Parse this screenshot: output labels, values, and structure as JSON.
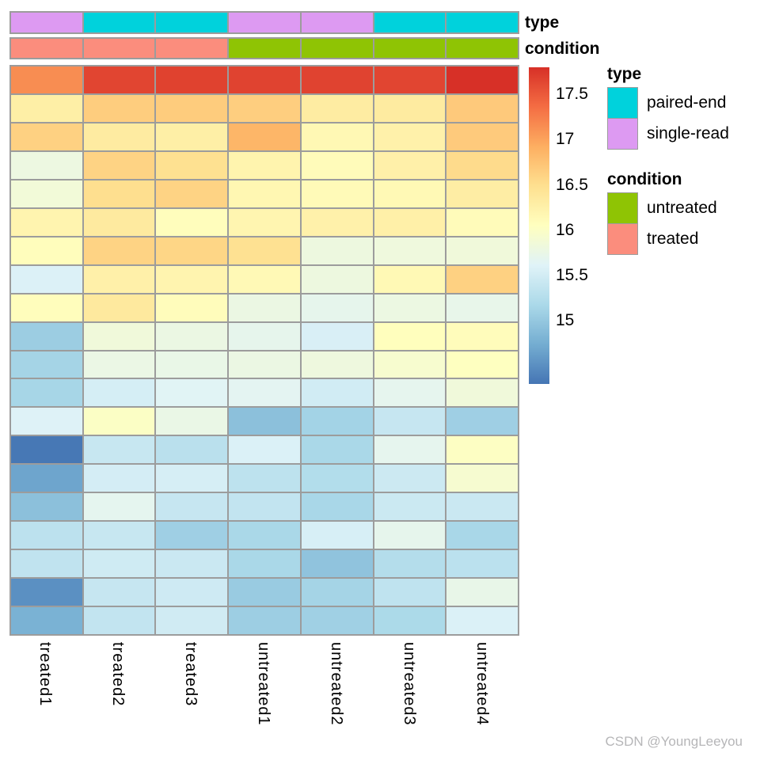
{
  "watermark": {
    "text": "CSDN @YoungLeeyou",
    "color": "#b6b6b8"
  },
  "annotation_bars": {
    "type_label": "type",
    "condition_label": "condition",
    "type_values": [
      "single-read",
      "paired-end",
      "paired-end",
      "single-read",
      "single-read",
      "paired-end",
      "paired-end"
    ],
    "condition_values": [
      "treated",
      "treated",
      "treated",
      "untreated",
      "untreated",
      "untreated",
      "untreated"
    ],
    "colors": {
      "paired-end": "#00D2DC",
      "single-read": "#DD9AF2",
      "untreated": "#8FC404",
      "treated": "#FB8D7D"
    }
  },
  "legends": [
    {
      "title": "type",
      "items": [
        {
          "label": "paired-end",
          "color": "#00D2DC"
        },
        {
          "label": "single-read",
          "color": "#DD9AF2"
        }
      ]
    },
    {
      "title": "condition",
      "items": [
        {
          "label": "untreated",
          "color": "#8FC404"
        },
        {
          "label": "treated",
          "color": "#FB8D7D"
        }
      ]
    }
  ],
  "chart_data": {
    "type": "heatmap",
    "title": "",
    "columns": [
      "treated1",
      "treated2",
      "treated3",
      "untreated1",
      "untreated2",
      "untreated3",
      "untreated4"
    ],
    "rows_shown": false,
    "grid_line_color": "#9C9C9C",
    "values": [
      [
        17.15,
        17.65,
        17.67,
        17.66,
        17.66,
        17.65,
        17.8
      ],
      [
        16.28,
        16.66,
        16.67,
        16.65,
        16.32,
        16.34,
        16.69
      ],
      [
        16.62,
        16.33,
        16.28,
        16.86,
        16.15,
        16.25,
        16.68
      ],
      [
        15.79,
        16.6,
        16.48,
        16.21,
        16.1,
        16.26,
        16.53
      ],
      [
        15.86,
        16.5,
        16.6,
        16.17,
        16.12,
        16.14,
        16.3
      ],
      [
        16.2,
        16.35,
        16.08,
        16.19,
        16.25,
        16.27,
        16.1
      ],
      [
        16.08,
        16.6,
        16.58,
        16.47,
        15.8,
        15.82,
        15.84
      ],
      [
        15.58,
        16.26,
        16.2,
        16.13,
        15.8,
        16.14,
        16.62
      ],
      [
        16.08,
        16.36,
        16.09,
        15.77,
        15.7,
        15.78,
        15.72
      ],
      [
        15.06,
        15.84,
        15.77,
        15.7,
        15.55,
        16.07,
        16.09
      ],
      [
        15.13,
        15.76,
        15.74,
        15.77,
        15.81,
        15.93,
        16.04
      ],
      [
        15.15,
        15.52,
        15.63,
        15.66,
        15.49,
        15.69,
        15.84
      ],
      [
        15.59,
        16.0,
        15.75,
        14.93,
        15.12,
        15.4,
        15.08
      ],
      [
        14.32,
        15.41,
        15.3,
        15.57,
        15.17,
        15.69,
        16.02
      ],
      [
        14.68,
        15.51,
        15.53,
        15.33,
        15.24,
        15.45,
        15.92
      ],
      [
        14.93,
        15.68,
        15.4,
        15.37,
        15.16,
        15.44,
        15.43
      ],
      [
        15.32,
        15.41,
        15.08,
        15.17,
        15.54,
        15.7,
        15.16
      ],
      [
        15.35,
        15.47,
        15.43,
        15.17,
        14.96,
        15.25,
        15.31
      ],
      [
        14.51,
        15.4,
        15.46,
        15.04,
        15.13,
        15.34,
        15.73
      ],
      [
        14.79,
        15.37,
        15.48,
        15.07,
        15.09,
        15.19,
        15.57
      ]
    ],
    "colorscale": {
      "min": 14.3,
      "max": 17.8,
      "ticks": [
        17.5,
        17,
        16.5,
        16,
        15.5,
        15
      ],
      "stops": [
        [
          14.3,
          "#4575B4"
        ],
        [
          14.74,
          "#74ADD1"
        ],
        [
          15.18,
          "#ABD9E9"
        ],
        [
          15.61,
          "#E0F3F8"
        ],
        [
          16.05,
          "#FFFFBF"
        ],
        [
          16.49,
          "#FEE090"
        ],
        [
          16.93,
          "#FDAE61"
        ],
        [
          17.36,
          "#F46D43"
        ],
        [
          17.8,
          "#D73027"
        ]
      ]
    }
  }
}
